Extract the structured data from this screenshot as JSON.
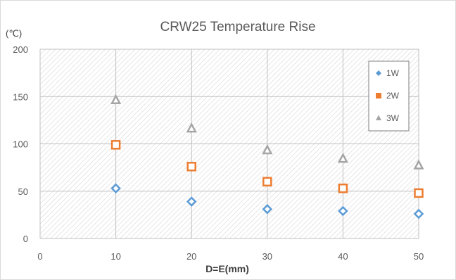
{
  "chart_data": {
    "type": "scatter",
    "title": "CRW25 Temperature Rise",
    "xlabel": "D=E(mm)",
    "ylabel": "(℃)",
    "xlim": [
      0,
      50
    ],
    "ylim": [
      0,
      200
    ],
    "xticks": [
      0,
      10,
      20,
      30,
      40,
      50
    ],
    "yticks": [
      0,
      50,
      100,
      150,
      200
    ],
    "x": [
      10,
      20,
      30,
      40,
      50
    ],
    "grid": true,
    "legend_position": "top-right",
    "series": [
      {
        "name": "1W",
        "marker": "diamond",
        "color": "#5B9BD5",
        "values": [
          53,
          39,
          31,
          29,
          26
        ]
      },
      {
        "name": "2W",
        "marker": "square",
        "color": "#ED7D31",
        "values": [
          99,
          76,
          60,
          53,
          48
        ]
      },
      {
        "name": "3W",
        "marker": "triangle",
        "color": "#A5A5A5",
        "values": [
          146,
          116,
          93,
          84,
          77
        ]
      }
    ]
  }
}
